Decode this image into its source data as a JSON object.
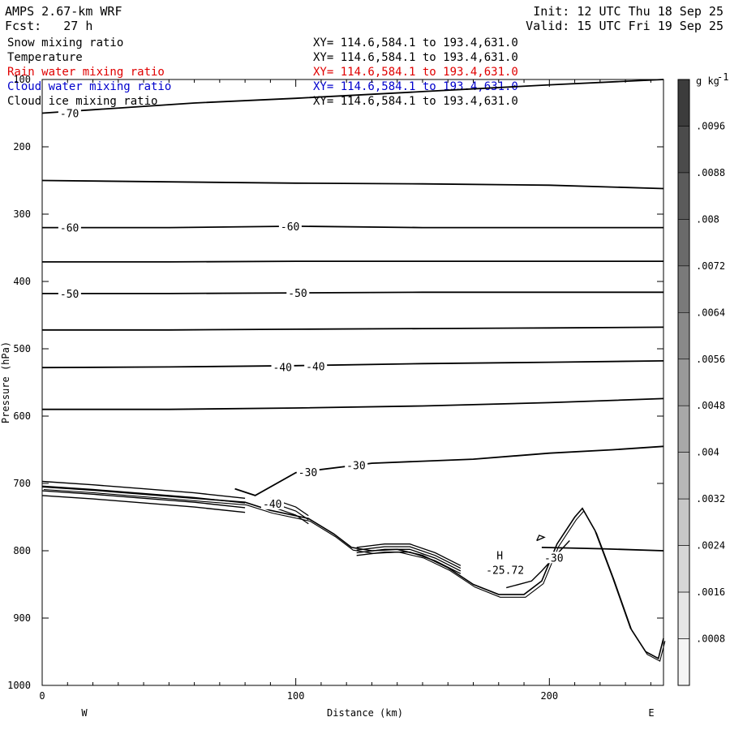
{
  "header": {
    "model": "AMPS 2.67-km WRF",
    "fcst_label": "Fcst:",
    "fcst_value": "27 h",
    "init": "Init: 12 UTC Thu 18 Sep 25",
    "valid": "Valid: 15 UTC Fri 19 Sep 25"
  },
  "legend": [
    {
      "name": "Snow mixing ratio",
      "xy": "XY= 114.6,584.1 to 193.4,631.0",
      "color": "#000000"
    },
    {
      "name": "Temperature",
      "xy": "XY= 114.6,584.1 to 193.4,631.0",
      "color": "#000000"
    },
    {
      "name": "Rain water mixing ratio",
      "xy": "XY= 114.6,584.1 to 193.4,631.0",
      "color": "#e00000"
    },
    {
      "name": "Cloud water mixing ratio",
      "xy": "XY= 114.6,584.1 to 193.4,631.0",
      "color": "#0000cc"
    },
    {
      "name": "Cloud ice mixing ratio",
      "xy": "XY= 114.6,584.1 to 193.4,631.0",
      "color": "#000000"
    }
  ],
  "chart_data": {
    "type": "contour",
    "xlabel": "Distance (km)",
    "ylabel": "Pressure (hPa)",
    "xlim": [
      0,
      245
    ],
    "ylim": [
      1000,
      100
    ],
    "x_ticks": [
      0,
      100,
      200
    ],
    "y_ticks": [
      100,
      200,
      300,
      400,
      500,
      600,
      700,
      800,
      900,
      1000
    ],
    "x_end_labels": {
      "left": "W",
      "right": "E"
    },
    "colorbar": {
      "unit": "g kg",
      "unit_exp": "-1",
      "ticks": [
        ".0096",
        ".0088",
        ".008",
        ".0072",
        ".0064",
        ".0056",
        ".0048",
        ".004",
        ".0032",
        ".0024",
        ".0016",
        ".0008"
      ]
    },
    "isotherms": [
      {
        "label": "-70",
        "points": [
          [
            0,
            150
          ],
          [
            20,
            145
          ],
          [
            60,
            135
          ],
          [
            100,
            128
          ],
          [
            150,
            118
          ],
          [
            200,
            108
          ],
          [
            245,
            100
          ]
        ]
      },
      {
        "label": "",
        "points": [
          [
            0,
            250
          ],
          [
            50,
            252
          ],
          [
            100,
            254
          ],
          [
            150,
            255
          ],
          [
            200,
            257
          ],
          [
            245,
            262
          ]
        ]
      },
      {
        "label": "-60",
        "points": [
          [
            0,
            320
          ],
          [
            50,
            320
          ],
          [
            100,
            318
          ],
          [
            150,
            320
          ],
          [
            200,
            320
          ],
          [
            245,
            320
          ]
        ]
      },
      {
        "label": "",
        "points": [
          [
            0,
            371
          ],
          [
            50,
            371
          ],
          [
            100,
            370
          ],
          [
            150,
            370
          ],
          [
            200,
            370
          ],
          [
            245,
            370
          ]
        ]
      },
      {
        "label": "-50",
        "points": [
          [
            0,
            418
          ],
          [
            50,
            418
          ],
          [
            100,
            417
          ],
          [
            150,
            416
          ],
          [
            200,
            416
          ],
          [
            245,
            416
          ]
        ]
      },
      {
        "label": "",
        "points": [
          [
            0,
            472
          ],
          [
            50,
            472
          ],
          [
            100,
            471
          ],
          [
            150,
            470
          ],
          [
            200,
            469
          ],
          [
            245,
            468
          ]
        ]
      },
      {
        "label": "-40",
        "points": [
          [
            0,
            528
          ],
          [
            50,
            527
          ],
          [
            100,
            525
          ],
          [
            150,
            522
          ],
          [
            200,
            520
          ],
          [
            245,
            518
          ]
        ]
      },
      {
        "label": "",
        "points": [
          [
            0,
            590
          ],
          [
            50,
            590
          ],
          [
            100,
            588
          ],
          [
            150,
            585
          ],
          [
            200,
            580
          ],
          [
            245,
            574
          ]
        ]
      },
      {
        "label": "-30",
        "points": [
          [
            76,
            708
          ],
          [
            84,
            718
          ],
          [
            100,
            684
          ],
          [
            130,
            670
          ],
          [
            170,
            664
          ],
          [
            200,
            655
          ],
          [
            225,
            650
          ],
          [
            245,
            645
          ]
        ]
      },
      {
        "label": "",
        "points": [
          [
            197,
            795
          ],
          [
            220,
            797
          ],
          [
            245,
            800
          ]
        ]
      }
    ],
    "inline_labels": [
      {
        "text": "-70",
        "x": 7,
        "p": 150
      },
      {
        "text": "-60",
        "x": 7,
        "p": 320
      },
      {
        "text": "-60",
        "x": 94,
        "p": 318
      },
      {
        "text": "-50",
        "x": 7,
        "p": 418
      },
      {
        "text": "-50",
        "x": 97,
        "p": 417
      },
      {
        "text": "-40",
        "x": 91,
        "p": 527
      },
      {
        "text": "-40",
        "x": 104,
        "p": 526
      },
      {
        "text": "-30",
        "x": 101,
        "p": 683
      },
      {
        "text": "-30",
        "x": 120,
        "p": 673
      },
      {
        "text": "-40",
        "x": 87,
        "p": 730
      },
      {
        "text": "-30",
        "x": 198,
        "p": 810
      }
    ],
    "extremum": {
      "marker": "H",
      "value": "-25.72",
      "x": 175,
      "p": 822
    },
    "terrain": [
      [
        0,
        705
      ],
      [
        20,
        710
      ],
      [
        40,
        716
      ],
      [
        60,
        722
      ],
      [
        80,
        728
      ],
      [
        90,
        740
      ],
      [
        105,
        752
      ],
      [
        115,
        775
      ],
      [
        122,
        795
      ],
      [
        130,
        800
      ],
      [
        140,
        798
      ],
      [
        150,
        807
      ],
      [
        160,
        825
      ],
      [
        170,
        850
      ],
      [
        180,
        865
      ],
      [
        190,
        865
      ],
      [
        197,
        845
      ],
      [
        203,
        790
      ],
      [
        210,
        750
      ],
      [
        213,
        737
      ],
      [
        218,
        770
      ],
      [
        225,
        840
      ],
      [
        232,
        915
      ],
      [
        238,
        950
      ],
      [
        243,
        960
      ],
      [
        245,
        930
      ]
    ]
  }
}
